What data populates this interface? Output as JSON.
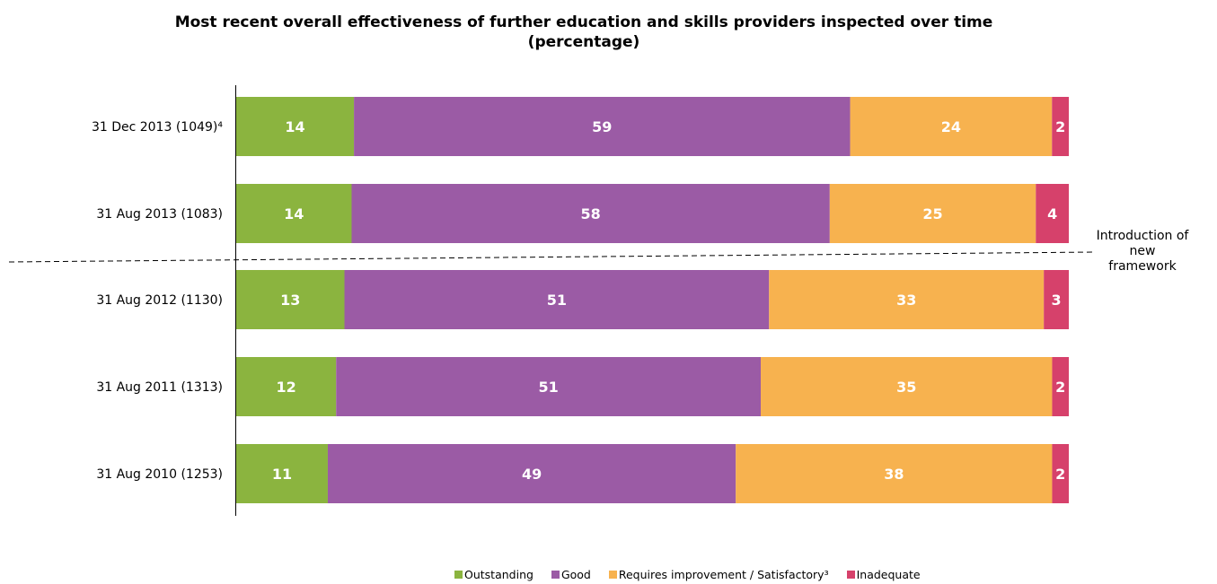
{
  "chart_data": {
    "type": "bar",
    "orientation": "horizontal",
    "stacked": true,
    "title_line1": "Most recent overall effectiveness of further education and skills providers inspected over time",
    "title_line2": "(percentage)",
    "categories": [
      "31 Dec 2013 (1049)⁴",
      "31 Aug 2013 (1083)",
      "31 Aug 2012 (1130)",
      "31 Aug 2011 (1313)",
      "31 Aug 2010 (1253)"
    ],
    "series": [
      {
        "name": "Outstanding",
        "color": "#8bb43f",
        "values": [
          14,
          14,
          13,
          12,
          11
        ]
      },
      {
        "name": "Good",
        "color": "#9b5ba5",
        "values": [
          59,
          58,
          51,
          51,
          49
        ]
      },
      {
        "name": "Requires improvement / Satisfactory³",
        "color": "#f7b24f",
        "values": [
          24,
          25,
          33,
          35,
          38
        ]
      },
      {
        "name": "Inadequate",
        "color": "#d6416b",
        "values": [
          2,
          4,
          3,
          2,
          2
        ]
      }
    ],
    "xlim": [
      0,
      100
    ],
    "grid": false,
    "legend_position": "bottom",
    "annotation": [
      "Introduction of",
      "new",
      "framework"
    ]
  }
}
